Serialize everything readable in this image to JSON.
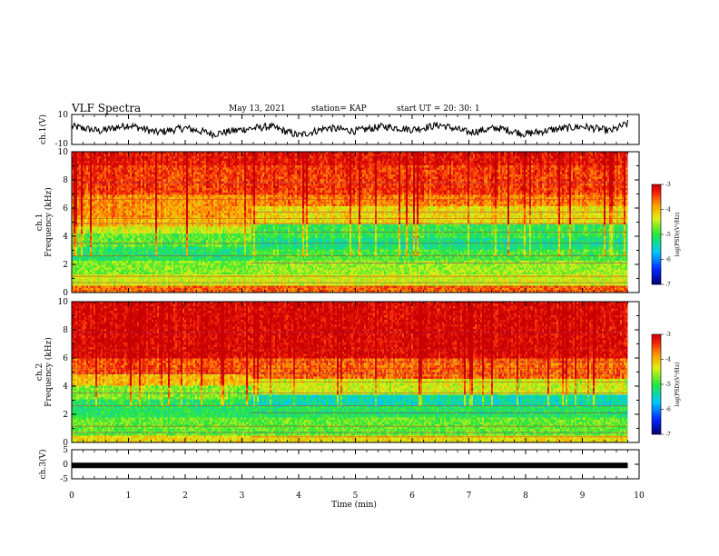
{
  "header": {
    "title": "VLF Spectra",
    "date": "May 13, 2021",
    "station": "station= KAP",
    "start": "start  UT  =   20: 30: 1"
  },
  "chart_data": [
    {
      "type": "line",
      "name": "ch1-waveform",
      "ylabel": "ch.1(V)",
      "ylim": [
        -10,
        10
      ],
      "yticks": [
        "10",
        "-10"
      ],
      "xlim": [
        0,
        10
      ],
      "x": [
        0,
        0.5,
        1,
        1.5,
        2,
        2.5,
        3,
        3.5,
        4,
        4.5,
        5,
        5.5,
        6,
        6.5,
        7,
        7.5,
        8,
        8.5,
        9,
        9.5,
        9.8
      ],
      "y": [
        2,
        -1,
        3,
        -2,
        1,
        -3,
        0,
        2,
        -4,
        1,
        -1,
        2,
        0,
        3,
        -2,
        1,
        -3,
        0,
        2,
        -1,
        4
      ]
    },
    {
      "type": "heatmap",
      "name": "ch1-spectrogram",
      "ylabel": "ch.1\nFrequency  (kHz)",
      "ylim": [
        0,
        10
      ],
      "yticks": [
        "0",
        "2",
        "4",
        "6",
        "8",
        "10"
      ],
      "xlim": [
        0,
        10
      ],
      "data_end_min": 9.8,
      "step_change_min": 3.15,
      "colorbar": {
        "label": "log(PSD)(V²/Hz)",
        "range": [
          -7,
          -3
        ],
        "ticks": [
          "-3",
          "-4",
          "-5",
          "-6",
          "-7"
        ]
      },
      "bands_before_step": [
        {
          "f": [
            9.0,
            10.0
          ],
          "v": -3.2
        },
        {
          "f": [
            7.0,
            9.0
          ],
          "v": -3.4
        },
        {
          "f": [
            5.4,
            7.0
          ],
          "v": -3.8
        },
        {
          "f": [
            4.7,
            5.4
          ],
          "v": -4.0
        },
        {
          "f": [
            4.2,
            4.7
          ],
          "v": -4.4
        },
        {
          "f": [
            3.2,
            4.2
          ],
          "v": -4.8
        },
        {
          "f": [
            2.2,
            3.2
          ],
          "v": -5.1
        },
        {
          "f": [
            1.3,
            2.2
          ],
          "v": -4.7
        },
        {
          "f": [
            0.5,
            1.3
          ],
          "v": -4.4
        },
        {
          "f": [
            0.0,
            0.5
          ],
          "v": -3.6
        }
      ],
      "bands_after_step": [
        {
          "f": [
            9.0,
            10.0
          ],
          "v": -3.2
        },
        {
          "f": [
            7.0,
            9.0
          ],
          "v": -3.4
        },
        {
          "f": [
            6.2,
            7.0
          ],
          "v": -3.7
        },
        {
          "f": [
            4.8,
            6.2
          ],
          "v": -4.2
        },
        {
          "f": [
            3.8,
            4.8
          ],
          "v": -5.0
        },
        {
          "f": [
            3.0,
            3.8
          ],
          "v": -5.2
        },
        {
          "f": [
            2.2,
            3.0
          ],
          "v": -4.9
        },
        {
          "f": [
            1.3,
            2.2
          ],
          "v": -4.6
        },
        {
          "f": [
            0.5,
            1.3
          ],
          "v": -4.4
        },
        {
          "f": [
            0.0,
            0.5
          ],
          "v": -3.6
        }
      ]
    },
    {
      "type": "heatmap",
      "name": "ch2-spectrogram",
      "ylabel": "ch.2\nFrequency  (kHz)",
      "ylim": [
        0,
        10
      ],
      "yticks": [
        "0",
        "2",
        "4",
        "6",
        "8",
        "10"
      ],
      "xlim": [
        0,
        10
      ],
      "data_end_min": 9.8,
      "step_change_min": 3.15,
      "colorbar": {
        "label": "log(PSD)(V²/Hz)",
        "range": [
          -7,
          -3
        ],
        "ticks": [
          "-3",
          "-4",
          "-5",
          "-6",
          "-7"
        ]
      },
      "bands_before_step": [
        {
          "f": [
            6.0,
            10.0
          ],
          "v": -3.1
        },
        {
          "f": [
            4.8,
            6.0
          ],
          "v": -3.5
        },
        {
          "f": [
            4.0,
            4.8
          ],
          "v": -4.0
        },
        {
          "f": [
            3.0,
            4.0
          ],
          "v": -4.7
        },
        {
          "f": [
            1.8,
            3.0
          ],
          "v": -5.1
        },
        {
          "f": [
            0.5,
            1.8
          ],
          "v": -4.8
        },
        {
          "f": [
            0.0,
            0.5
          ],
          "v": -4.2
        }
      ],
      "bands_after_step": [
        {
          "f": [
            6.0,
            10.0
          ],
          "v": -3.1
        },
        {
          "f": [
            4.5,
            6.0
          ],
          "v": -3.6
        },
        {
          "f": [
            3.4,
            4.5
          ],
          "v": -4.4
        },
        {
          "f": [
            2.6,
            3.4
          ],
          "v": -5.4
        },
        {
          "f": [
            1.8,
            2.6
          ],
          "v": -5.1
        },
        {
          "f": [
            0.5,
            1.8
          ],
          "v": -4.8
        },
        {
          "f": [
            0.0,
            0.5
          ],
          "v": -4.2
        }
      ]
    },
    {
      "type": "line",
      "name": "ch3-signal",
      "ylabel": "ch.3(V)",
      "ylim": [
        -5,
        5
      ],
      "yticks": [
        "5",
        "0",
        "-5"
      ],
      "xlim": [
        0,
        10
      ],
      "x": [
        0,
        9.8
      ],
      "y": [
        -0.4,
        -0.4
      ],
      "xlabel": "Time  (min)",
      "xticks": [
        "0",
        "1",
        "2",
        "3",
        "4",
        "5",
        "6",
        "7",
        "8",
        "9",
        "10"
      ]
    }
  ]
}
